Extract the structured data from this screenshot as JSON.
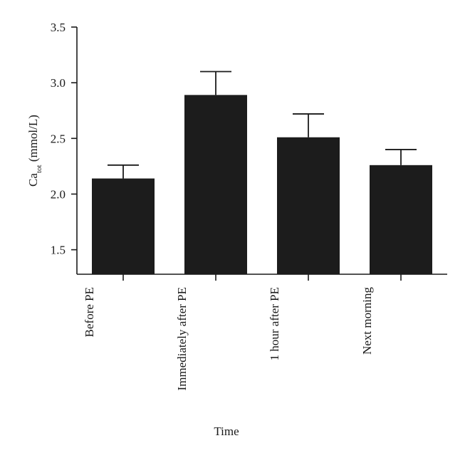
{
  "chart_data": {
    "type": "bar",
    "xlabel": "Time",
    "ylabel": {
      "main": "Ca",
      "subscript": "tot",
      "suffix": " (mmol/L)"
    },
    "categories": [
      "Before PE",
      "Immediately after PE",
      "1 hour after PE",
      "Next morning"
    ],
    "values": [
      2.14,
      2.89,
      2.51,
      2.26
    ],
    "errors": [
      0.12,
      0.21,
      0.21,
      0.14
    ],
    "ylim": [
      1.28,
      3.5
    ],
    "yticks": [
      1.5,
      2.0,
      2.5,
      3.0,
      3.5
    ],
    "ytick_labels": [
      "1.5",
      "2.0",
      "2.5",
      "3.0",
      "3.5"
    ],
    "bar_color": "#1c1c1c",
    "grid": false,
    "legend": "none"
  }
}
